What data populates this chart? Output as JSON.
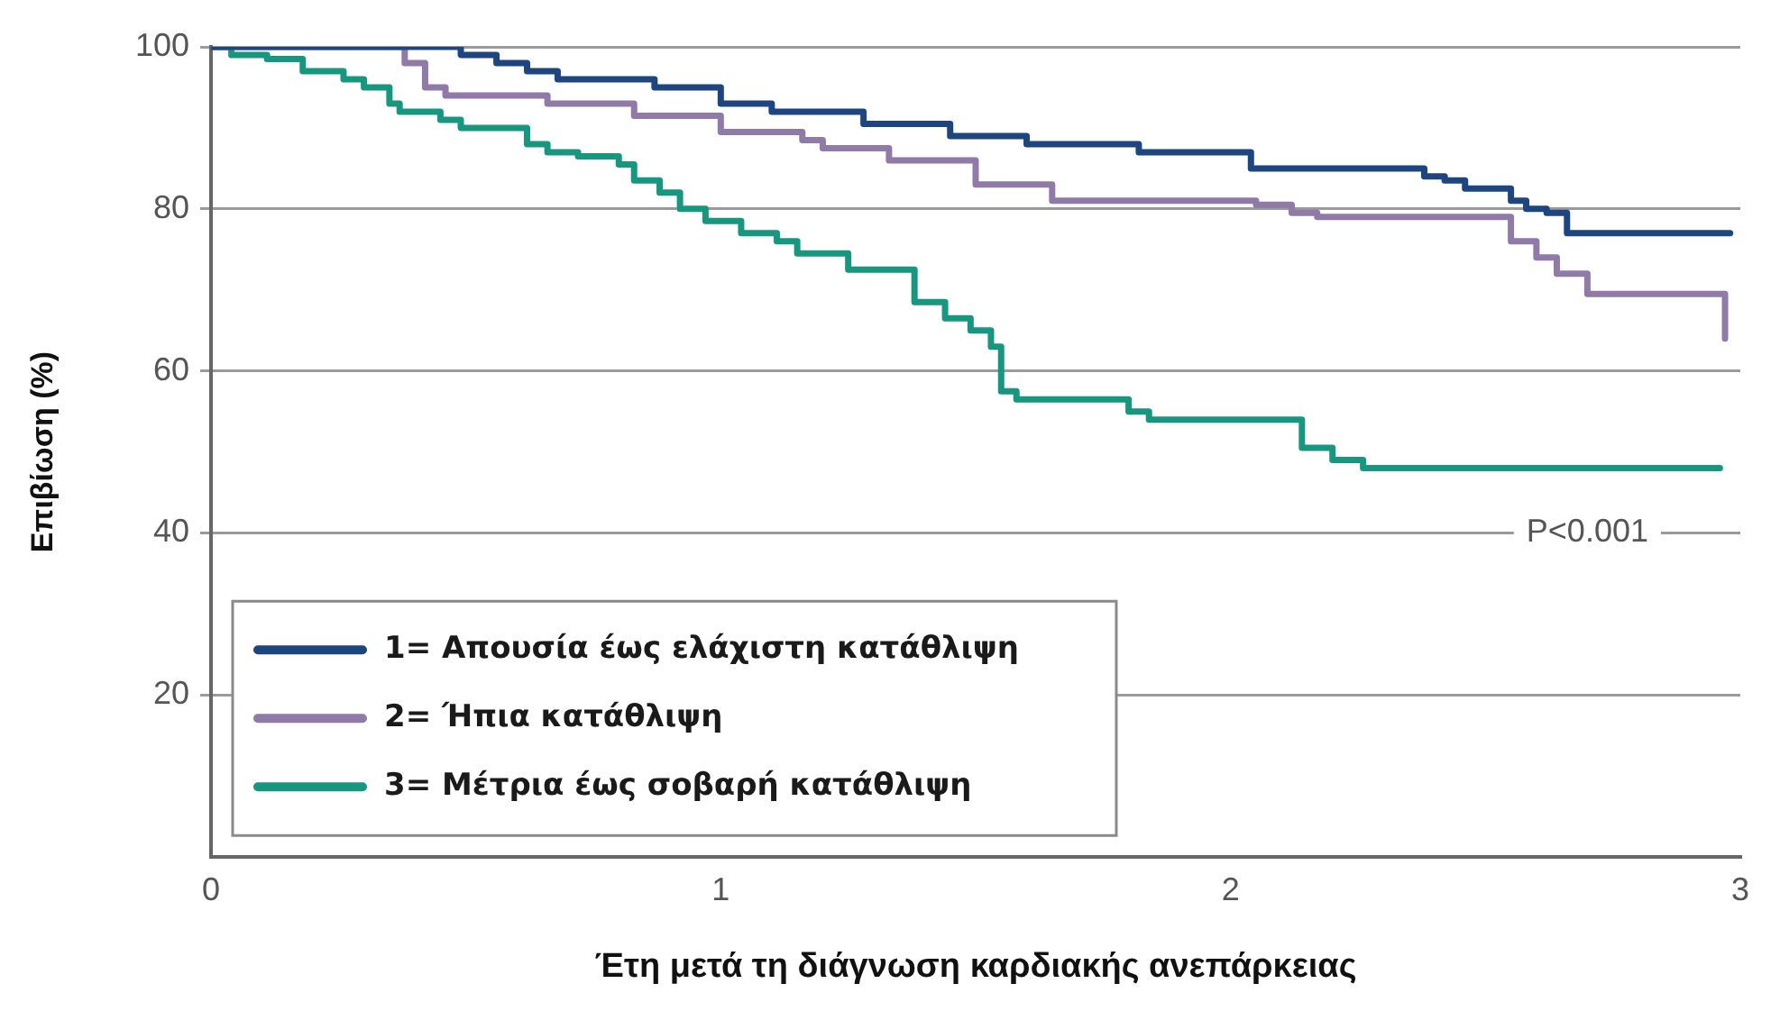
{
  "chart_data": {
    "type": "step",
    "xlabel": "Έτη μετά τη διάγνωση καρδιακής ανεπάρκειας",
    "ylabel": "Επιβίωση (%)",
    "xlim": [
      0,
      3
    ],
    "xticks": [
      0,
      1,
      2,
      3
    ],
    "ylim": [
      0,
      100
    ],
    "yticks": [
      20,
      40,
      60,
      80,
      100
    ],
    "grid": "y",
    "legend": "bottom left",
    "annotations": [
      "P<0.001"
    ],
    "series": [
      {
        "name": "1= Απουσία έως ελάχιστη κατάθλιψη",
        "color": "#1d4580",
        "x": [
          0,
          0.49,
          0.56,
          0.62,
          0.68,
          0.87,
          1.0,
          1.1,
          1.28,
          1.45,
          1.6,
          1.82,
          2.04,
          2.38,
          2.42,
          2.46,
          2.55,
          2.58,
          2.62,
          2.66,
          2.98
        ],
        "values": [
          100,
          99,
          98,
          97,
          96,
          95,
          93,
          92,
          90.5,
          89,
          88,
          87,
          85,
          84,
          83.5,
          82.5,
          81,
          80,
          79.5,
          77,
          77
        ]
      },
      {
        "name": "2= Ήπια κατάθλιψη",
        "color": "#8f7aa8",
        "x": [
          0,
          0.38,
          0.42,
          0.46,
          0.66,
          0.83,
          1.0,
          1.16,
          1.2,
          1.33,
          1.5,
          1.65,
          2.05,
          2.12,
          2.17,
          2.55,
          2.6,
          2.64,
          2.7,
          2.97
        ],
        "values": [
          100,
          98,
          95,
          94,
          93,
          91.5,
          89.5,
          88.5,
          87.5,
          86,
          83,
          81,
          80.5,
          79.5,
          79,
          76,
          74,
          72,
          69.5,
          64
        ]
      },
      {
        "name": "3= Μέτρια έως σοβαρή κατάθλιψη",
        "color": "#17977f",
        "x": [
          0,
          0.04,
          0.11,
          0.18,
          0.26,
          0.3,
          0.35,
          0.37,
          0.45,
          0.49,
          0.62,
          0.66,
          0.72,
          0.8,
          0.83,
          0.88,
          0.92,
          0.97,
          1.04,
          1.11,
          1.15,
          1.25,
          1.38,
          1.44,
          1.49,
          1.53,
          1.55,
          1.58,
          1.8,
          1.84,
          2.14,
          2.2,
          2.26,
          2.96
        ],
        "values": [
          100,
          99,
          98.5,
          97,
          96,
          95,
          93,
          92,
          91,
          90,
          88,
          87,
          86.5,
          85.5,
          83.5,
          82,
          80,
          78.5,
          77,
          76,
          74.5,
          72.5,
          68.5,
          66.5,
          65,
          63,
          57.5,
          56.5,
          55,
          54,
          50.5,
          49,
          48,
          48
        ]
      }
    ]
  }
}
